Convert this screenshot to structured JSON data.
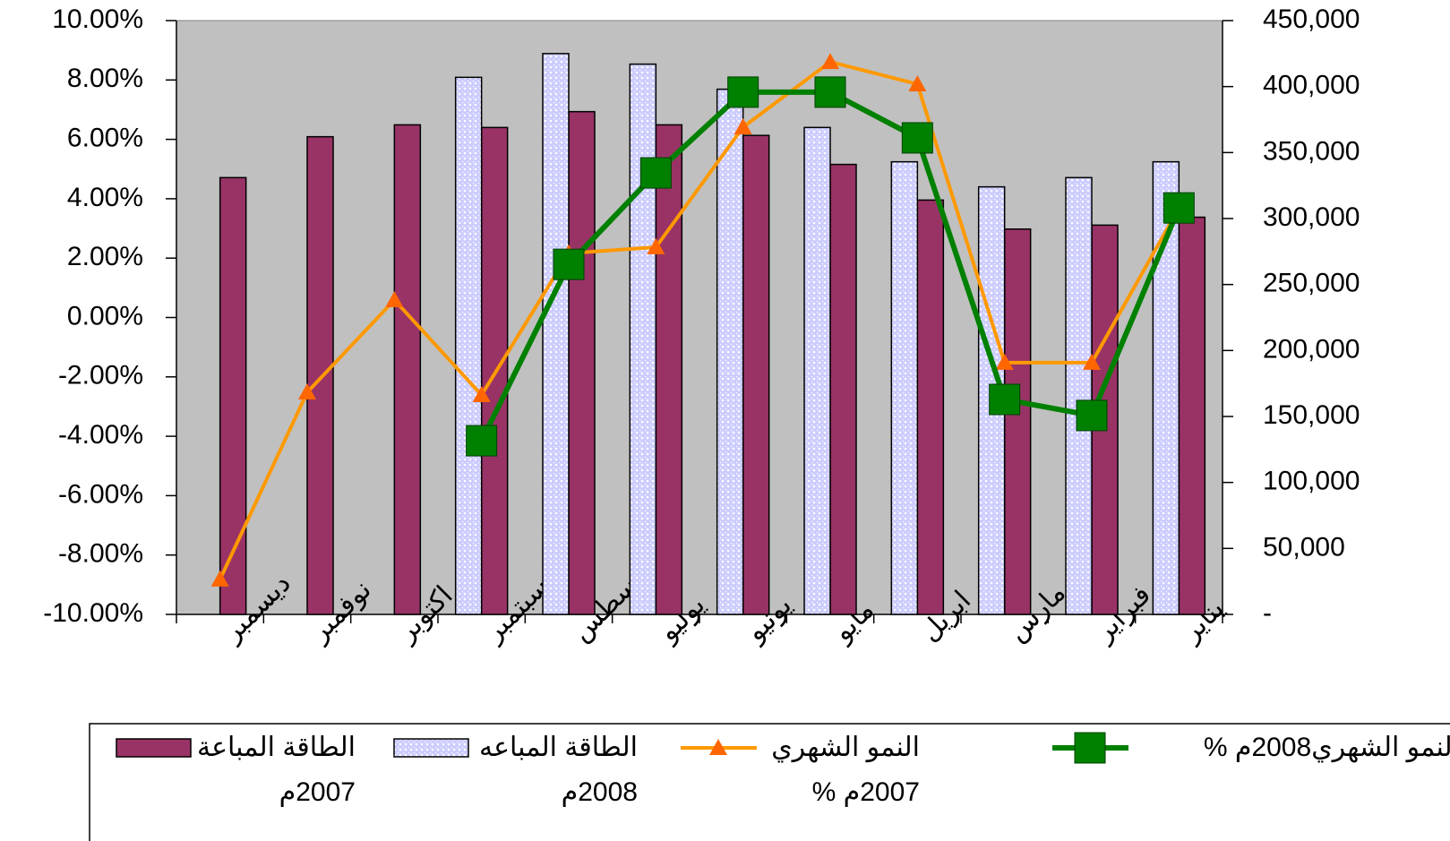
{
  "chart_data": {
    "type": "bar",
    "categories": [
      "ديسمبر",
      "نوفمبر",
      "اكتوبر",
      "سبتمبر",
      "اغسطس",
      "يوليو",
      "يونيو",
      "مايو",
      "ابريل",
      "مارس",
      "فبراير",
      "يناير"
    ],
    "series": [
      {
        "name": "الطاقة المباعة 2007م",
        "type": "bar",
        "axis": "y2",
        "color": "#993366",
        "values": [
          331000,
          362000,
          371000,
          369000,
          381000,
          371000,
          363000,
          341000,
          314000,
          292000,
          295000,
          301000
        ]
      },
      {
        "name": "الطاقة المباعه 2008م",
        "type": "bar",
        "axis": "y2",
        "color": "#ccccff",
        "values": [
          null,
          null,
          null,
          407000,
          425000,
          417000,
          398000,
          369000,
          343000,
          324000,
          331000,
          343000
        ]
      },
      {
        "name": "النمو الشهري 2007م %",
        "type": "line",
        "marker": "triangle",
        "color": "#ff9900",
        "values": [
          -8.82,
          -2.52,
          0.59,
          -2.61,
          2.16,
          2.37,
          6.41,
          8.61,
          7.86,
          -1.52,
          -1.52,
          3.69
        ]
      },
      {
        "name": "النمو الشهري2008م %",
        "type": "line",
        "marker": "square",
        "color": "#008000",
        "values": [
          null,
          null,
          null,
          -4.15,
          1.79,
          4.87,
          7.59,
          7.59,
          6.05,
          -2.76,
          -3.3,
          3.69
        ]
      }
    ],
    "ylim": [
      -10,
      10
    ],
    "yticks": [
      {
        "value": -10,
        "label": "-10.00%"
      },
      {
        "value": -8,
        "label": "-8.00%"
      },
      {
        "value": -6,
        "label": "-6.00%"
      },
      {
        "value": -4,
        "label": "-4.00%"
      },
      {
        "value": -2,
        "label": "-2.00%"
      },
      {
        "value": 0,
        "label": "0.00%"
      },
      {
        "value": 2,
        "label": "2.00%"
      },
      {
        "value": 4,
        "label": "4.00%"
      },
      {
        "value": 6,
        "label": "6.00%"
      },
      {
        "value": 8,
        "label": "8.00%"
      },
      {
        "value": 10,
        "label": "10.00%"
      }
    ],
    "y2lim": [
      0,
      450000
    ],
    "y2ticks": [
      {
        "value": 0,
        "label": "-"
      },
      {
        "value": 50000,
        "label": "50,000"
      },
      {
        "value": 100000,
        "label": "100,000"
      },
      {
        "value": 150000,
        "label": "150,000"
      },
      {
        "value": 200000,
        "label": "200,000"
      },
      {
        "value": 250000,
        "label": "250,000"
      },
      {
        "value": 300000,
        "label": "300,000"
      },
      {
        "value": 350000,
        "label": "350,000"
      },
      {
        "value": 400000,
        "label": "400,000"
      },
      {
        "value": 450000,
        "label": "450,000"
      }
    ],
    "plot_background": "#c0c0c0"
  }
}
